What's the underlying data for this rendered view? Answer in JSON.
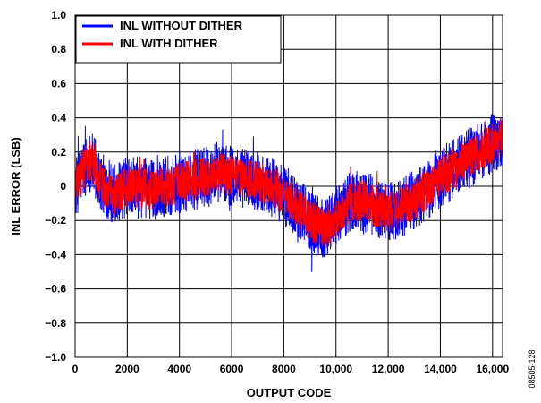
{
  "chart_data": {
    "type": "line",
    "xlabel": "OUTPUT CODE",
    "ylabel": "INL ERROR (LSB)",
    "xlim": [
      0,
      16384
    ],
    "ylim": [
      -1.0,
      1.0
    ],
    "x_ticks": [
      0,
      2000,
      4000,
      6000,
      8000,
      10000,
      12000,
      14000,
      16000
    ],
    "x_tick_labels": [
      "0",
      "2000",
      "4000",
      "6000",
      "8000",
      "10,000",
      "12,000",
      "14,000",
      "16,000"
    ],
    "y_ticks": [
      -1.0,
      -0.8,
      -0.6,
      -0.4,
      -0.2,
      0,
      0.2,
      0.4,
      0.6,
      0.8,
      1.0
    ],
    "y_tick_labels": [
      "−1.0",
      "−0.8",
      "−0.6",
      "−0.4",
      "−0.2",
      "0",
      "0.2",
      "0.4",
      "0.6",
      "0.8",
      "1.0"
    ],
    "grid": true,
    "legend_position": "top-left",
    "figure_id": "08505-128",
    "series": [
      {
        "name": "INL WITHOUT DITHER",
        "color": "#0000ff",
        "trend_x": [
          0,
          300,
          600,
          1000,
          1500,
          2000,
          3000,
          4000,
          5000,
          5500,
          6000,
          6500,
          7000,
          7500,
          8000,
          8500,
          9000,
          9500,
          10000,
          10500,
          11000,
          11500,
          12000,
          12500,
          13000,
          13500,
          14000,
          14500,
          15000,
          15500,
          16000,
          16383
        ],
        "trend_y": [
          -0.02,
          0.1,
          0.15,
          0.02,
          -0.05,
          0.0,
          -0.02,
          0.02,
          0.05,
          0.08,
          0.06,
          0.05,
          0.03,
          0.0,
          -0.05,
          -0.12,
          -0.2,
          -0.25,
          -0.18,
          -0.1,
          -0.08,
          -0.12,
          -0.15,
          -0.12,
          -0.08,
          -0.02,
          0.05,
          0.1,
          0.15,
          0.2,
          0.25,
          0.3
        ],
        "noise_amplitude": 0.18,
        "max_excursion": [
          0.56,
          -0.52
        ]
      },
      {
        "name": "INL WITH DITHER",
        "color": "#ff0000",
        "trend_x": [
          0,
          300,
          600,
          1000,
          1500,
          2000,
          3000,
          4000,
          5000,
          5500,
          6000,
          6500,
          7000,
          7500,
          8000,
          8500,
          9000,
          9500,
          10000,
          10500,
          11000,
          11500,
          12000,
          12500,
          13000,
          13500,
          14000,
          14500,
          15000,
          15500,
          16000,
          16383
        ],
        "trend_y": [
          -0.02,
          0.1,
          0.15,
          0.02,
          -0.05,
          0.0,
          -0.02,
          0.02,
          0.05,
          0.08,
          0.06,
          0.05,
          0.03,
          0.0,
          -0.05,
          -0.12,
          -0.2,
          -0.25,
          -0.18,
          -0.1,
          -0.08,
          -0.12,
          -0.15,
          -0.12,
          -0.08,
          -0.02,
          0.05,
          0.1,
          0.15,
          0.2,
          0.25,
          0.3
        ],
        "noise_amplitude": 0.12,
        "max_excursion": [
          0.4,
          -0.38
        ]
      }
    ]
  }
}
